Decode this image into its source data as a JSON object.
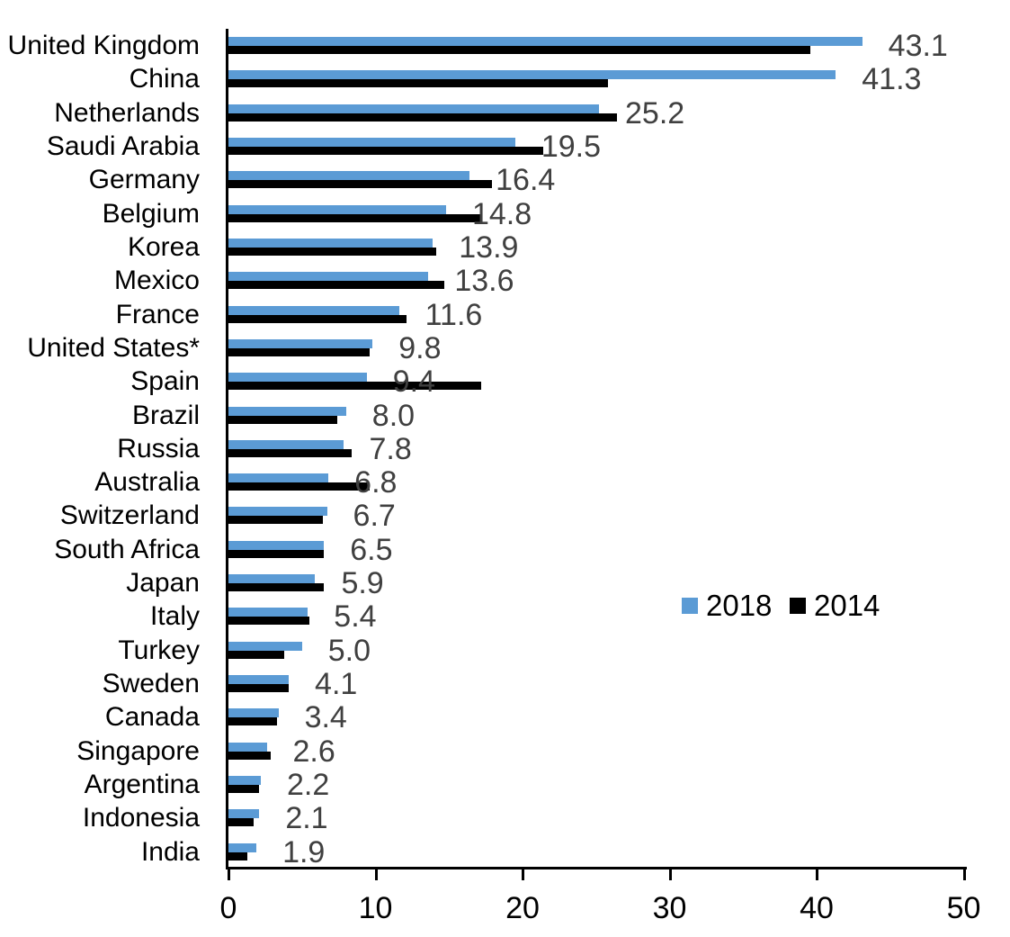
{
  "chart_data": {
    "type": "bar",
    "orientation": "horizontal",
    "title": "",
    "xlabel": "",
    "ylabel": "",
    "xlim": [
      0,
      50
    ],
    "xticks": [
      0,
      10,
      20,
      30,
      40,
      50
    ],
    "grid": false,
    "legend_position": "middle-right",
    "value_label_color": "#404040",
    "categories": [
      "United Kingdom",
      "China",
      "Netherlands",
      "Saudi Arabia",
      "Germany",
      "Belgium",
      "Korea",
      "Mexico",
      "France",
      "United States*",
      "Spain",
      "Brazil",
      "Russia",
      "Australia",
      "Switzerland",
      "South Africa",
      "Japan",
      "Italy",
      "Turkey",
      "Sweden",
      "Canada",
      "Singapore",
      "Argentina",
      "Indonesia",
      "India"
    ],
    "series": [
      {
        "name": "2018",
        "color": "#5B9BD5",
        "values": [
          43.1,
          41.3,
          25.2,
          19.5,
          16.4,
          14.8,
          13.9,
          13.6,
          11.6,
          9.8,
          9.4,
          8.0,
          7.8,
          6.8,
          6.7,
          6.5,
          5.9,
          5.4,
          5.0,
          4.1,
          3.4,
          2.6,
          2.2,
          2.1,
          1.9
        ],
        "data_labels": [
          "43.1",
          "41.3",
          "25.2",
          "19.5",
          "16.4",
          "14.8",
          "13.9",
          "13.6",
          "11.6",
          "9.8",
          "9.4",
          "8.0",
          "7.8",
          "6.8",
          "6.7",
          "6.5",
          "5.9",
          "5.4",
          "5.0",
          "4.1",
          "3.4",
          "2.6",
          "2.2",
          "2.1",
          "1.9"
        ]
      },
      {
        "name": "2014",
        "color": "#000000",
        "values": [
          39.6,
          25.8,
          26.4,
          21.4,
          17.9,
          17.1,
          14.1,
          14.7,
          12.1,
          9.6,
          17.2,
          7.4,
          8.4,
          9.6,
          6.4,
          6.5,
          6.5,
          5.5,
          3.8,
          4.1,
          3.3,
          2.9,
          2.1,
          1.7,
          1.3
        ],
        "data_labels": []
      }
    ]
  },
  "legend": {
    "items": [
      {
        "label": "2018",
        "color": "#5B9BD5"
      },
      {
        "label": "2014",
        "color": "#000000"
      }
    ]
  }
}
